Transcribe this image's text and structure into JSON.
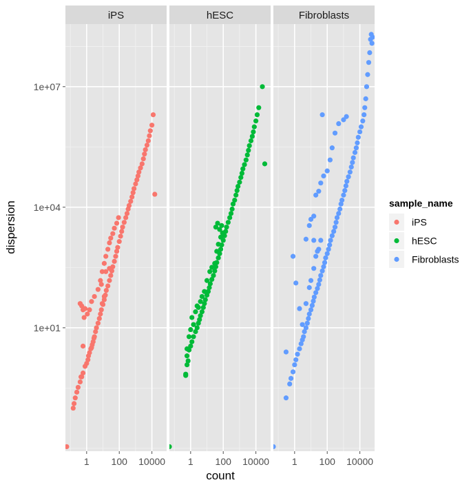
{
  "chart_data": {
    "type": "scatter",
    "xlabel": "count",
    "ylabel": "dispersion",
    "x_scale": "log10",
    "y_scale": "log10",
    "xlim": [
      0.05,
      80000
    ],
    "ylim": [
      0.0085,
      360000000.0
    ],
    "x_ticks": [
      1,
      100,
      10000
    ],
    "x_tick_labels": [
      "1",
      "100",
      "10000"
    ],
    "y_ticks": [
      10,
      10000,
      10000000
    ],
    "y_tick_labels": [
      "1e+01",
      "1e+04",
      "1e+07"
    ],
    "grid": true,
    "legend": {
      "title": "sample_name",
      "position": "right"
    },
    "facets": [
      "iPS",
      "hESC",
      "Fibroblasts"
    ],
    "colors": {
      "iPS": "#F8766D",
      "hESC": "#00BA38",
      "Fibroblasts": "#619CFF"
    },
    "series": [
      {
        "name": "iPS",
        "points": [
          [
            0.06,
            0.011
          ],
          [
            0.15,
            0.1
          ],
          [
            0.17,
            0.13
          ],
          [
            0.2,
            0.18
          ],
          [
            0.25,
            0.25
          ],
          [
            0.3,
            0.33
          ],
          [
            0.4,
            0.45
          ],
          [
            0.45,
            0.6
          ],
          [
            0.5,
            0.6
          ],
          [
            0.6,
            0.75
          ],
          [
            0.6,
            3.5
          ],
          [
            0.8,
            1.1
          ],
          [
            1,
            1.3
          ],
          [
            1.2,
            1.6
          ],
          [
            1.3,
            2
          ],
          [
            1.5,
            2.4
          ],
          [
            1.8,
            3
          ],
          [
            2,
            3.2
          ],
          [
            2.2,
            3.8
          ],
          [
            2.5,
            4.5
          ],
          [
            2.8,
            5.5
          ],
          [
            3,
            6
          ],
          [
            3.5,
            8
          ],
          [
            4,
            10
          ],
          [
            5,
            13
          ],
          [
            6,
            17
          ],
          [
            7,
            22
          ],
          [
            8,
            28
          ],
          [
            10,
            38
          ],
          [
            12,
            50
          ],
          [
            14,
            65
          ],
          [
            16,
            85
          ],
          [
            20,
            110
          ],
          [
            25,
            150
          ],
          [
            30,
            200
          ],
          [
            35,
            260
          ],
          [
            40,
            330
          ],
          [
            50,
            450
          ],
          [
            60,
            600
          ],
          [
            70,
            800
          ],
          [
            80,
            1000
          ],
          [
            100,
            1400
          ],
          [
            120,
            1900
          ],
          [
            140,
            2500
          ],
          [
            160,
            3200
          ],
          [
            200,
            4200
          ],
          [
            250,
            5500
          ],
          [
            300,
            7000
          ],
          [
            350,
            9000
          ],
          [
            400,
            11000
          ],
          [
            500,
            14000
          ],
          [
            600,
            18000
          ],
          [
            700,
            23000
          ],
          [
            800,
            29000
          ],
          [
            1000,
            38000
          ],
          [
            1200,
            48000
          ],
          [
            1400,
            60000
          ],
          [
            1600,
            75000
          ],
          [
            2000,
            95000
          ],
          [
            2500,
            120000
          ],
          [
            3000,
            160000
          ],
          [
            3500,
            210000
          ],
          [
            4000,
            270000
          ],
          [
            5000,
            350000
          ],
          [
            6000,
            450000
          ],
          [
            7000,
            600000
          ],
          [
            8000,
            800000
          ],
          [
            10000,
            1100000
          ],
          [
            12000,
            2000000
          ],
          [
            15000,
            21000
          ],
          [
            0.4,
            40
          ],
          [
            0.5,
            35
          ],
          [
            0.6,
            28
          ],
          [
            0.8,
            30
          ],
          [
            0.7,
            18
          ],
          [
            1.1,
            22
          ],
          [
            1.5,
            28
          ],
          [
            2,
            45
          ],
          [
            3,
            60
          ],
          [
            5,
            90
          ],
          [
            7,
            150
          ],
          [
            9,
            250
          ],
          [
            12,
            400
          ],
          [
            15,
            600
          ],
          [
            20,
            900
          ],
          [
            25,
            1300
          ],
          [
            30,
            1700
          ],
          [
            40,
            2200
          ],
          [
            50,
            3000
          ],
          [
            70,
            4000
          ],
          [
            90,
            5500
          ],
          [
            9,
            40
          ],
          [
            12,
            60
          ],
          [
            8,
            120
          ],
          [
            15,
            250
          ],
          [
            25,
            300
          ]
        ]
      },
      {
        "name": "hESC",
        "points": [
          [
            0.05,
            0.011
          ],
          [
            0.5,
            0.65
          ],
          [
            0.5,
            0.7
          ],
          [
            0.6,
            1.2
          ],
          [
            0.7,
            1.5
          ],
          [
            0.6,
            2
          ],
          [
            0.8,
            2.8
          ],
          [
            1,
            3.5
          ],
          [
            1.2,
            4.5
          ],
          [
            1.5,
            6
          ],
          [
            2,
            8
          ],
          [
            2.5,
            10
          ],
          [
            3,
            13
          ],
          [
            3.5,
            16
          ],
          [
            4,
            20
          ],
          [
            5,
            25
          ],
          [
            6,
            32
          ],
          [
            7,
            40
          ],
          [
            8,
            50
          ],
          [
            10,
            65
          ],
          [
            12,
            80
          ],
          [
            14,
            100
          ],
          [
            16,
            125
          ],
          [
            20,
            160
          ],
          [
            25,
            200
          ],
          [
            30,
            260
          ],
          [
            35,
            330
          ],
          [
            40,
            420
          ],
          [
            50,
            550
          ],
          [
            60,
            700
          ],
          [
            70,
            900
          ],
          [
            80,
            1150
          ],
          [
            100,
            1500
          ],
          [
            120,
            1950
          ],
          [
            140,
            2500
          ],
          [
            160,
            3200
          ],
          [
            200,
            4200
          ],
          [
            250,
            5500
          ],
          [
            300,
            7000
          ],
          [
            350,
            9000
          ],
          [
            400,
            12000
          ],
          [
            500,
            15000
          ],
          [
            600,
            20000
          ],
          [
            700,
            26000
          ],
          [
            800,
            33000
          ],
          [
            1000,
            42000
          ],
          [
            1200,
            55000
          ],
          [
            1400,
            70000
          ],
          [
            1600,
            90000
          ],
          [
            2000,
            115000
          ],
          [
            2500,
            150000
          ],
          [
            3000,
            200000
          ],
          [
            3500,
            260000
          ],
          [
            4000,
            340000
          ],
          [
            5000,
            450000
          ],
          [
            6000,
            580000
          ],
          [
            7000,
            750000
          ],
          [
            8000,
            1000000
          ],
          [
            10000,
            1400000
          ],
          [
            12000,
            2000000
          ],
          [
            15000,
            3000000
          ],
          [
            25000,
            10000000
          ],
          [
            35000,
            120000
          ],
          [
            0.6,
            3
          ],
          [
            0.8,
            6
          ],
          [
            1,
            9
          ],
          [
            1.5,
            12
          ],
          [
            1.2,
            18
          ],
          [
            2,
            25
          ],
          [
            2.5,
            35
          ],
          [
            3,
            32
          ],
          [
            4,
            45
          ],
          [
            5,
            60
          ],
          [
            7,
            80
          ],
          [
            10,
            150
          ],
          [
            15,
            250
          ],
          [
            20,
            320
          ],
          [
            30,
            400
          ],
          [
            40,
            800
          ],
          [
            50,
            1200
          ],
          [
            70,
            1800
          ],
          [
            90,
            2300
          ],
          [
            35,
            3200
          ],
          [
            45,
            4000
          ],
          [
            60,
            2800
          ],
          [
            80,
            3500
          ]
        ]
      },
      {
        "name": "Fibroblasts",
        "points": [
          [
            0.05,
            0.011
          ],
          [
            0.3,
            0.18
          ],
          [
            0.3,
            2.5
          ],
          [
            0.5,
            0.4
          ],
          [
            0.6,
            0.55
          ],
          [
            0.8,
            0.8
          ],
          [
            1,
            1.2
          ],
          [
            1.2,
            1.6
          ],
          [
            1.5,
            2.2
          ],
          [
            2,
            3
          ],
          [
            2.5,
            4
          ],
          [
            3,
            5
          ],
          [
            3.5,
            6
          ],
          [
            4,
            8
          ],
          [
            5,
            10
          ],
          [
            6,
            13
          ],
          [
            7,
            17
          ],
          [
            8,
            22
          ],
          [
            10,
            28
          ],
          [
            12,
            36
          ],
          [
            14,
            46
          ],
          [
            16,
            58
          ],
          [
            20,
            75
          ],
          [
            25,
            95
          ],
          [
            30,
            120
          ],
          [
            35,
            155
          ],
          [
            40,
            200
          ],
          [
            50,
            260
          ],
          [
            60,
            330
          ],
          [
            70,
            420
          ],
          [
            80,
            550
          ],
          [
            100,
            700
          ],
          [
            120,
            900
          ],
          [
            140,
            1150
          ],
          [
            160,
            1500
          ],
          [
            200,
            1950
          ],
          [
            250,
            2500
          ],
          [
            300,
            3200
          ],
          [
            350,
            4200
          ],
          [
            400,
            5500
          ],
          [
            500,
            7000
          ],
          [
            600,
            9000
          ],
          [
            700,
            12000
          ],
          [
            800,
            15000
          ],
          [
            1000,
            20000
          ],
          [
            1200,
            26000
          ],
          [
            1400,
            34000
          ],
          [
            1600,
            44000
          ],
          [
            2000,
            57000
          ],
          [
            2500,
            75000
          ],
          [
            3000,
            100000
          ],
          [
            3500,
            130000
          ],
          [
            4000,
            170000
          ],
          [
            5000,
            230000
          ],
          [
            6000,
            300000
          ],
          [
            7000,
            400000
          ],
          [
            8000,
            550000
          ],
          [
            10000,
            750000
          ],
          [
            12000,
            1000000
          ],
          [
            15000,
            1400000
          ],
          [
            18000,
            2000000
          ],
          [
            20000,
            3000000
          ],
          [
            23000,
            5000000
          ],
          [
            26000,
            10000000
          ],
          [
            30000,
            20000000
          ],
          [
            35000,
            40000000
          ],
          [
            40000,
            70000000
          ],
          [
            45000,
            150000000
          ],
          [
            55000,
            120000000
          ],
          [
            60000,
            170000000
          ],
          [
            50000,
            200000000
          ],
          [
            0.8,
            600
          ],
          [
            1.2,
            130
          ],
          [
            2,
            30
          ],
          [
            3,
            12
          ],
          [
            5,
            40
          ],
          [
            8,
            100
          ],
          [
            10,
            150
          ],
          [
            15,
            300
          ],
          [
            20,
            600
          ],
          [
            30,
            900
          ],
          [
            40,
            1500
          ],
          [
            5,
            1600
          ],
          [
            8,
            3500
          ],
          [
            15,
            6000
          ],
          [
            20,
            20000
          ],
          [
            30,
            25000
          ],
          [
            40,
            40000
          ],
          [
            60,
            60000
          ],
          [
            100,
            80000
          ],
          [
            150,
            150000
          ],
          [
            200,
            300000
          ],
          [
            300,
            700000
          ],
          [
            500,
            1200000
          ],
          [
            1000,
            1500000
          ],
          [
            1500,
            1800000
          ],
          [
            50,
            2000000
          ],
          [
            15,
            1500
          ],
          [
            25,
            800
          ],
          [
            10,
            5000
          ]
        ]
      }
    ]
  }
}
